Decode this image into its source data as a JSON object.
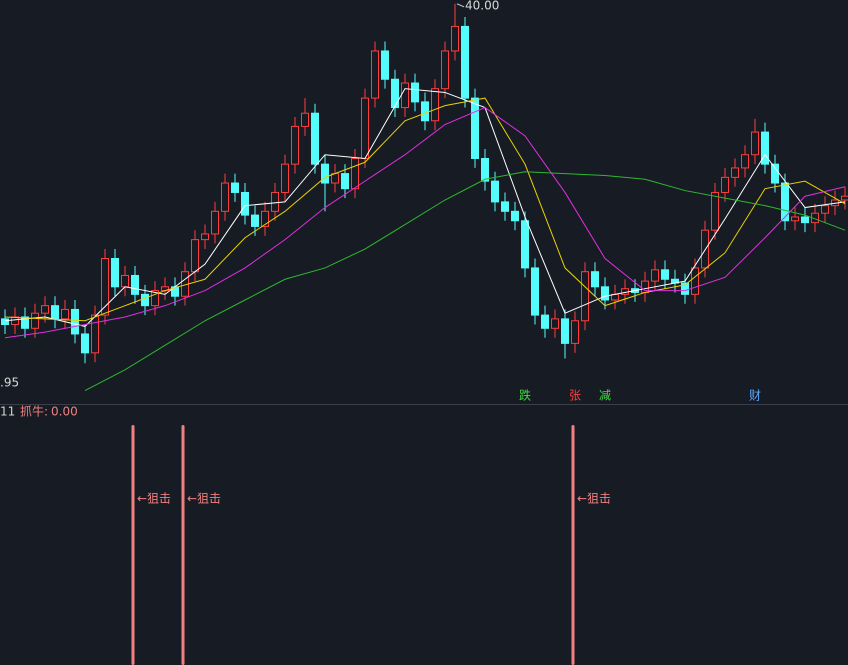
{
  "chart_data": {
    "type": "candlestick",
    "ylim": [
      19,
      40.2
    ],
    "up_color": "#ff3d3d",
    "down_color": "#54fcfc",
    "open": [
      23.3,
      23.0,
      23.4,
      22.8,
      23.6,
      24.0,
      23.3,
      23.8,
      22.5,
      21.5,
      23.5,
      26.5,
      25.0,
      25.6,
      24.6,
      24.0,
      24.8,
      25.0,
      24.5,
      25.8,
      27.5,
      27.8,
      29.0,
      30.5,
      30.0,
      28.8,
      28.2,
      29.0,
      30.0,
      31.5,
      33.5,
      34.2,
      31.5,
      30.5,
      31.0,
      30.2,
      31.8,
      35.0,
      37.5,
      36.0,
      34.5,
      35.8,
      34.8,
      33.8,
      35.5,
      37.5,
      38.8,
      35.0,
      31.8,
      30.6,
      29.5,
      29.0,
      28.5,
      26.0,
      23.5,
      22.8,
      23.3,
      22.0,
      23.2,
      25.8,
      25.0,
      24.3,
      24.6,
      24.9,
      24.7,
      25.3,
      25.9,
      25.4,
      25.2,
      24.6,
      26.0,
      28.0,
      30.0,
      30.8,
      31.3,
      32.0,
      33.2,
      31.5,
      30.5,
      28.5,
      28.7,
      28.4,
      28.9,
      29.3,
      29.6
    ],
    "high": [
      23.8,
      23.9,
      23.9,
      24.1,
      24.5,
      24.5,
      24.3,
      24.3,
      23.0,
      24.0,
      27.0,
      27.0,
      26.1,
      26.1,
      25.1,
      25.3,
      25.5,
      25.5,
      26.3,
      28.0,
      28.3,
      29.5,
      31.0,
      31.0,
      30.5,
      29.3,
      29.5,
      30.5,
      32.0,
      34.0,
      35.0,
      34.7,
      32.0,
      31.5,
      31.5,
      32.3,
      35.5,
      38.0,
      38.0,
      36.5,
      36.3,
      36.3,
      35.3,
      36.0,
      38.0,
      40.0,
      39.3,
      35.5,
      32.3,
      31.1,
      30.0,
      29.5,
      29.0,
      26.5,
      24.0,
      23.8,
      23.8,
      23.7,
      26.3,
      26.3,
      25.5,
      25.1,
      25.4,
      25.4,
      25.8,
      26.4,
      26.4,
      25.9,
      25.7,
      26.5,
      28.5,
      30.5,
      31.3,
      31.8,
      32.5,
      33.9,
      33.7,
      32.0,
      31.0,
      29.2,
      29.2,
      29.4,
      29.8,
      30.1,
      30.3
    ],
    "low": [
      22.5,
      22.5,
      22.3,
      22.3,
      23.1,
      22.8,
      22.8,
      22.0,
      20.95,
      21.0,
      23.0,
      24.5,
      24.5,
      24.1,
      23.5,
      23.5,
      24.3,
      24.0,
      24.0,
      25.3,
      27.0,
      27.3,
      28.5,
      29.5,
      28.3,
      27.7,
      27.7,
      28.5,
      29.5,
      31.0,
      33.0,
      31.0,
      29.0,
      30.0,
      29.7,
      29.7,
      31.3,
      34.5,
      35.5,
      34.0,
      34.0,
      34.3,
      33.3,
      33.3,
      35.0,
      37.0,
      34.5,
      31.3,
      30.1,
      29.0,
      28.5,
      28.0,
      25.5,
      23.0,
      22.3,
      22.3,
      21.2,
      21.5,
      22.7,
      24.5,
      23.8,
      23.8,
      24.1,
      24.2,
      24.2,
      24.8,
      24.9,
      24.7,
      24.1,
      24.1,
      25.5,
      27.5,
      29.5,
      30.3,
      30.8,
      31.5,
      31.0,
      30.0,
      28.0,
      28.0,
      27.9,
      27.9,
      28.4,
      28.8,
      29.1
    ],
    "close": [
      23.0,
      23.4,
      22.8,
      23.6,
      24.0,
      23.3,
      23.8,
      22.5,
      21.5,
      23.5,
      26.5,
      25.0,
      25.6,
      24.6,
      24.0,
      24.8,
      25.0,
      24.5,
      25.8,
      27.5,
      27.8,
      29.0,
      30.5,
      30.0,
      28.8,
      28.2,
      29.0,
      30.0,
      31.5,
      33.5,
      34.2,
      31.5,
      30.5,
      31.0,
      30.2,
      31.8,
      35.0,
      37.5,
      36.0,
      34.5,
      35.8,
      34.8,
      33.8,
      35.5,
      37.5,
      38.8,
      35.0,
      31.8,
      30.6,
      29.5,
      29.0,
      28.5,
      26.0,
      23.5,
      22.8,
      23.3,
      22.0,
      23.2,
      25.8,
      25.0,
      24.3,
      24.6,
      24.9,
      24.7,
      25.3,
      25.9,
      25.4,
      25.2,
      24.6,
      26.0,
      28.0,
      30.0,
      30.8,
      31.3,
      32.0,
      33.2,
      31.5,
      30.5,
      28.5,
      28.7,
      28.4,
      28.9,
      29.3,
      29.6,
      29.8
    ],
    "high_label": "40.00",
    "low_label": ".95",
    "lines": [
      {
        "color": "#ffffff",
        "x": [
          0,
          4,
          8,
          12,
          16,
          20,
          24,
          28,
          32,
          36,
          40,
          44,
          48,
          52,
          56,
          60,
          64,
          68,
          72,
          76,
          80,
          84
        ],
        "values": [
          23.2,
          23.4,
          22.9,
          25.0,
          24.6,
          26.2,
          29.3,
          29.5,
          32.0,
          31.8,
          35.5,
          35.3,
          34.5,
          28.7,
          23.6,
          24.5,
          24.9,
          25.3,
          28.6,
          32.0,
          29.2,
          29.5
        ]
      },
      {
        "color": "#e8d200",
        "x": [
          0,
          4,
          8,
          12,
          16,
          20,
          24,
          28,
          32,
          36,
          40,
          44,
          48,
          52,
          56,
          60,
          64,
          68,
          72,
          76,
          80,
          84
        ],
        "values": [
          23.4,
          23.3,
          23.2,
          24.0,
          24.8,
          25.4,
          27.6,
          29.0,
          30.8,
          31.6,
          33.8,
          34.6,
          35.0,
          31.5,
          26.0,
          24.0,
          24.7,
          25.1,
          26.8,
          30.2,
          30.6,
          29.4
        ]
      },
      {
        "color": "#e030e0",
        "x": [
          0,
          4,
          8,
          12,
          16,
          20,
          24,
          28,
          32,
          36,
          40,
          44,
          48,
          52,
          56,
          60,
          64,
          68,
          72,
          76,
          80,
          84
        ],
        "values": [
          22.3,
          22.6,
          23.0,
          23.4,
          24.0,
          24.8,
          26.0,
          27.5,
          29.2,
          30.6,
          32.0,
          33.6,
          34.5,
          33.0,
          30.0,
          26.5,
          24.8,
          24.8,
          25.5,
          27.6,
          29.8,
          30.3
        ]
      },
      {
        "color": "#2fb82f",
        "x": [
          8,
          12,
          16,
          20,
          24,
          28,
          32,
          36,
          40,
          44,
          48,
          52,
          56,
          60,
          64,
          68,
          72,
          76,
          80,
          84
        ],
        "values": [
          19.5,
          20.6,
          21.9,
          23.2,
          24.3,
          25.4,
          26.0,
          27.0,
          28.3,
          29.6,
          30.7,
          31.1,
          31.0,
          30.9,
          30.7,
          30.1,
          29.7,
          29.3,
          28.8,
          28.0
        ]
      }
    ],
    "events": [
      {
        "x": 52,
        "label": "跌",
        "color": "#3ddc3d"
      },
      {
        "x": 57,
        "label": "张",
        "color": "#ff4040"
      },
      {
        "x": 60,
        "label": "减",
        "color": "#3ddc3d"
      },
      {
        "x": 75,
        "label": "财",
        "color": "#5aa8ff"
      }
    ],
    "indicator": {
      "prefix": "11",
      "name": "抓牛:",
      "current_label": "0.00",
      "current": 0,
      "ylim": [
        0,
        1
      ],
      "color": "#f08080",
      "signals": [
        {
          "x": 13,
          "value": 1,
          "label": "←狙击"
        },
        {
          "x": 18,
          "value": 1,
          "label": "←狙击"
        },
        {
          "x": 57,
          "value": 1,
          "label": "←狙击"
        }
      ]
    }
  }
}
